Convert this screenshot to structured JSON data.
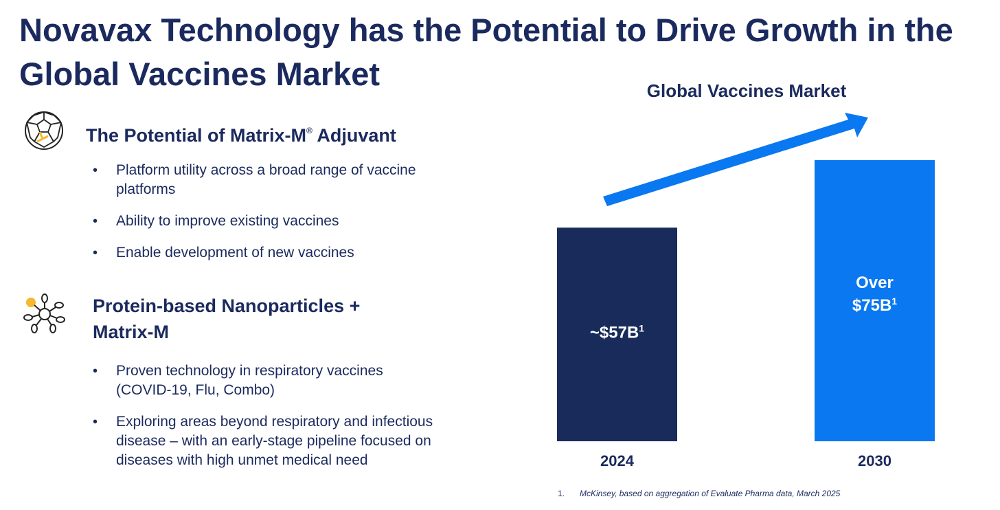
{
  "title": "Novavax Technology has the Potential to Drive Growth in the Global Vaccines Market",
  "sections": [
    {
      "icon": "fullerene-icon",
      "heading": "The Potential of Matrix-M",
      "heading_mark": "®",
      "heading_suffix": " Adjuvant",
      "bullets": [
        "Platform utility across a broad range of vaccine platforms",
        "Ability to improve existing vaccines",
        "Enable development of new vaccines"
      ]
    },
    {
      "icon": "nanoparticle-icon",
      "heading": "Protein-based Nanoparticles + Matrix-M",
      "bullets": [
        "Proven technology in respiratory vaccines (COVID-19, Flu, Combo)",
        "Exploring areas beyond respiratory and infectious disease – with an early-stage pipeline focused on diseases with high unmet medical need"
      ]
    }
  ],
  "colors": {
    "navy": "#1b2a5e",
    "bar_2024": "#182b5a",
    "bar_2030": "#0a78f0",
    "arrow": "#0a78f0",
    "accent": "#f5b82e"
  },
  "chart_data": {
    "type": "bar",
    "title": "Global Vaccines Market",
    "categories": [
      "2024",
      "2030"
    ],
    "values": [
      57,
      75
    ],
    "value_labels": [
      [
        "~$57B",
        "1"
      ],
      [
        "Over",
        "$75B",
        "1"
      ]
    ],
    "ylim": [
      0,
      75
    ],
    "trend_arrow": true,
    "unit": "USD billions"
  },
  "footnote": {
    "number": "1.",
    "text": "McKinsey, based on aggregation of Evaluate Pharma data, March 2025"
  }
}
